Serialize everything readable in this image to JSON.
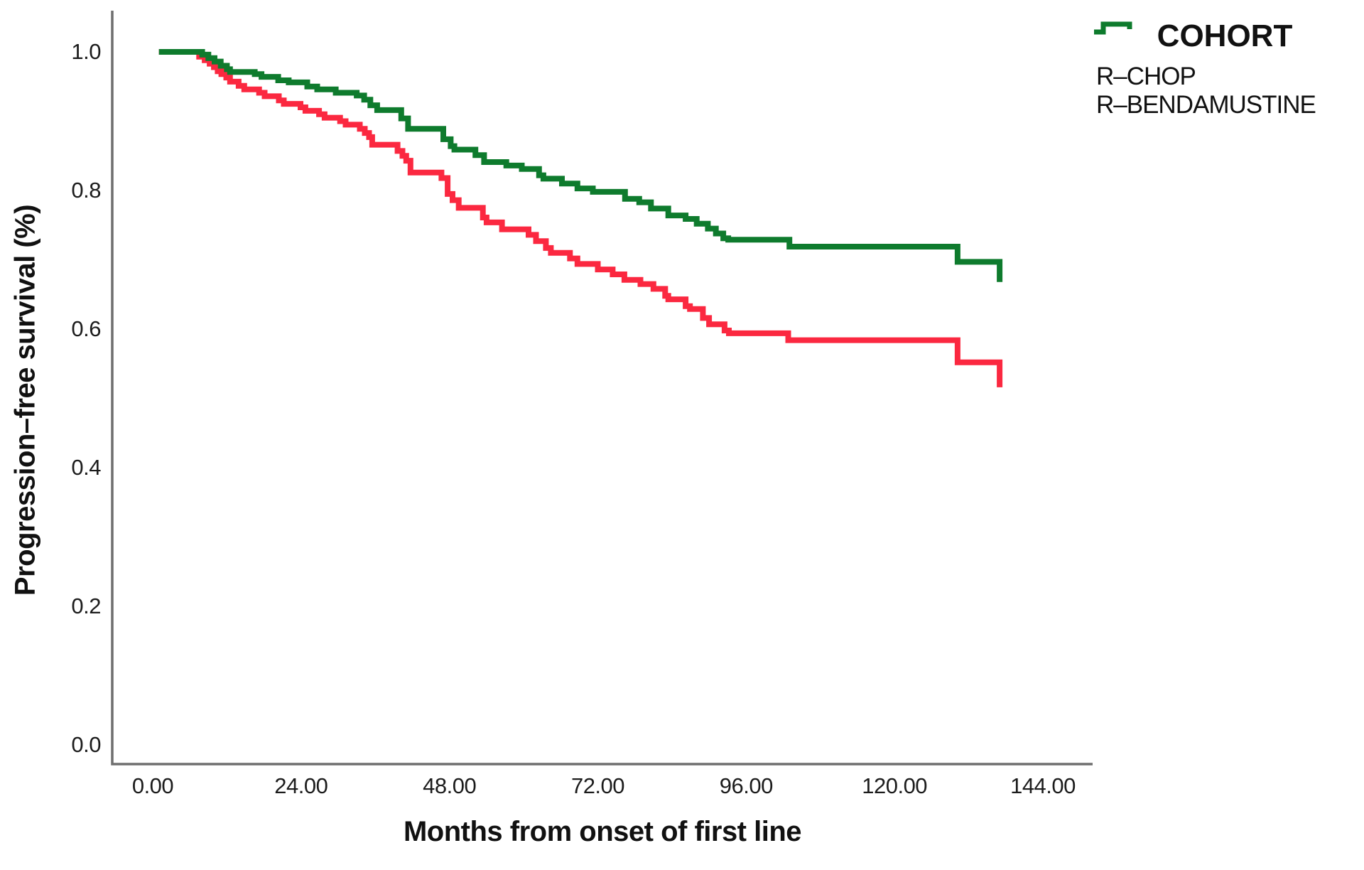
{
  "chart_data": {
    "type": "line",
    "subtype": "kaplan-meier-step",
    "title": "",
    "xlabel": "Months from onset of first line",
    "ylabel": "Progression–free survival (%)",
    "grid": false,
    "legend": {
      "title": "COHORT",
      "position": "top-right"
    },
    "axis_color": "#6F6F6F",
    "text_color": "#1A1A1A",
    "xlim": [
      -6.5,
      152
    ],
    "ylim": [
      -0.028,
      1.06
    ],
    "x_ticks": [
      {
        "value": 0,
        "label": "0.00"
      },
      {
        "value": 24,
        "label": "24.00"
      },
      {
        "value": 48,
        "label": "48.00"
      },
      {
        "value": 72,
        "label": "72.00"
      },
      {
        "value": 96,
        "label": "96.00"
      },
      {
        "value": 120,
        "label": "120.00"
      },
      {
        "value": 144,
        "label": "144.00"
      }
    ],
    "y_ticks": [
      {
        "value": 1.0,
        "label": "1.0"
      },
      {
        "value": 0.8,
        "label": "0.8"
      },
      {
        "value": 0.6,
        "label": "0.6"
      },
      {
        "value": 0.4,
        "label": "0.4"
      },
      {
        "value": 0.2,
        "label": "0.2"
      },
      {
        "value": 0.0,
        "label": "0.0"
      }
    ],
    "series": [
      {
        "name": "R–CHOP",
        "color": "#FB2840",
        "points": [
          [
            1,
            1.0
          ],
          [
            7.5,
            0.993
          ],
          [
            8.4,
            0.988
          ],
          [
            9.2,
            0.983
          ],
          [
            9.9,
            0.978
          ],
          [
            10.5,
            0.972
          ],
          [
            11.1,
            0.968
          ],
          [
            11.9,
            0.963
          ],
          [
            12.5,
            0.957
          ],
          [
            13.9,
            0.951
          ],
          [
            14.8,
            0.946
          ],
          [
            17.2,
            0.941
          ],
          [
            18.1,
            0.936
          ],
          [
            20.4,
            0.93
          ],
          [
            21.2,
            0.925
          ],
          [
            23.9,
            0.92
          ],
          [
            24.7,
            0.915
          ],
          [
            26.9,
            0.91
          ],
          [
            27.8,
            0.905
          ],
          [
            30.3,
            0.9
          ],
          [
            31.2,
            0.895
          ],
          [
            33.5,
            0.889
          ],
          [
            34.3,
            0.883
          ],
          [
            35.0,
            0.877
          ],
          [
            35.5,
            0.866
          ],
          [
            39.6,
            0.857
          ],
          [
            40.4,
            0.85
          ],
          [
            41.0,
            0.843
          ],
          [
            41.7,
            0.826
          ],
          [
            46.7,
            0.818
          ],
          [
            47.7,
            0.795
          ],
          [
            48.5,
            0.786
          ],
          [
            49.5,
            0.775
          ],
          [
            53.4,
            0.761
          ],
          [
            54.0,
            0.754
          ],
          [
            56.5,
            0.744
          ],
          [
            60.8,
            0.736
          ],
          [
            62.0,
            0.727
          ],
          [
            63.6,
            0.717
          ],
          [
            64.4,
            0.71
          ],
          [
            67.5,
            0.702
          ],
          [
            68.7,
            0.694
          ],
          [
            72.0,
            0.686
          ],
          [
            74.4,
            0.679
          ],
          [
            76.3,
            0.671
          ],
          [
            78.9,
            0.665
          ],
          [
            81.0,
            0.658
          ],
          [
            82.9,
            0.648
          ],
          [
            83.4,
            0.643
          ],
          [
            86.2,
            0.633
          ],
          [
            86.9,
            0.629
          ],
          [
            89.0,
            0.616
          ],
          [
            90.0,
            0.607
          ],
          [
            92.5,
            0.598
          ],
          [
            93.2,
            0.594
          ],
          [
            102.8,
            0.584
          ],
          [
            130.2,
            0.552
          ],
          [
            137,
            0.516
          ]
        ]
      },
      {
        "name": "R–BENDAMUSTINE",
        "color": "#0E7B2D",
        "points": [
          [
            1,
            1.0
          ],
          [
            8,
            0.996
          ],
          [
            9,
            0.991
          ],
          [
            10,
            0.986
          ],
          [
            11,
            0.98
          ],
          [
            12,
            0.975
          ],
          [
            12.5,
            0.971
          ],
          [
            16.5,
            0.968
          ],
          [
            17.6,
            0.964
          ],
          [
            20.3,
            0.959
          ],
          [
            22,
            0.956
          ],
          [
            25,
            0.95
          ],
          [
            26.6,
            0.946
          ],
          [
            29.6,
            0.941
          ],
          [
            33,
            0.937
          ],
          [
            34.2,
            0.931
          ],
          [
            35.2,
            0.923
          ],
          [
            36.3,
            0.916
          ],
          [
            40.2,
            0.904
          ],
          [
            41.3,
            0.889
          ],
          [
            47,
            0.874
          ],
          [
            48.2,
            0.864
          ],
          [
            48.8,
            0.859
          ],
          [
            52.2,
            0.851
          ],
          [
            53.6,
            0.841
          ],
          [
            57.2,
            0.836
          ],
          [
            59.7,
            0.831
          ],
          [
            62.5,
            0.822
          ],
          [
            63.2,
            0.817
          ],
          [
            66.2,
            0.81
          ],
          [
            68.7,
            0.803
          ],
          [
            71.2,
            0.798
          ],
          [
            76.4,
            0.788
          ],
          [
            78.7,
            0.783
          ],
          [
            80.6,
            0.774
          ],
          [
            83.4,
            0.764
          ],
          [
            86.2,
            0.759
          ],
          [
            88.0,
            0.752
          ],
          [
            89.8,
            0.745
          ],
          [
            91.1,
            0.738
          ],
          [
            92.3,
            0.731
          ],
          [
            93.1,
            0.729
          ],
          [
            103.0,
            0.719
          ],
          [
            130.2,
            0.697
          ],
          [
            137,
            0.668
          ]
        ]
      }
    ]
  }
}
